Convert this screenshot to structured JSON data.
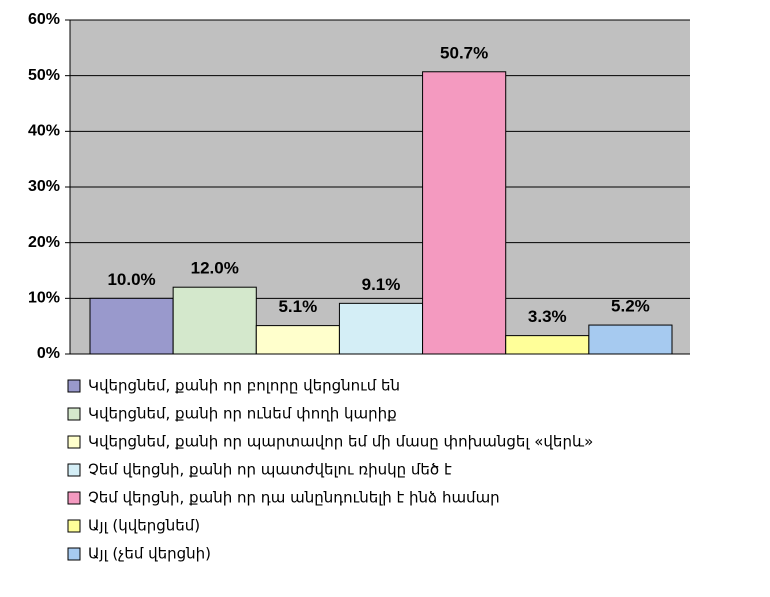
{
  "chart_data": {
    "type": "bar",
    "categories": [
      "Կվերցնեմ, քանի որ բոլորը վերցնում են",
      "Կվերցնեմ, քանի որ ունեմ փողի կարիք",
      "Կվերցնեմ, քանի որ պարտավոր եմ մի մասը փոխանցել «վերև»",
      "Չեմ վերցնի, քանի որ պատժվելու ռիսկը մեծ է",
      "Չեմ վերցնի, քանի որ դա անընդունելի է ինձ համար",
      "Այլ (կվերցնեմ)",
      "Այլ (չեմ վերցնի)"
    ],
    "values": [
      10.0,
      12.0,
      5.1,
      9.1,
      50.7,
      3.3,
      5.2
    ],
    "value_labels": [
      "10.0%",
      "12.0%",
      "5.1%",
      "9.1%",
      "50.7%",
      "3.3%",
      "5.2%"
    ],
    "colors": [
      "#9999cc",
      "#d4e8cc",
      "#ffffcc",
      "#d4eef6",
      "#f49ac0",
      "#ffff99",
      "#a6caf0"
    ],
    "ylim": [
      0,
      60
    ],
    "yticks": [
      {
        "value": 0,
        "label": "0%"
      },
      {
        "value": 10,
        "label": "10%"
      },
      {
        "value": 20,
        "label": "20%"
      },
      {
        "value": 30,
        "label": "30%"
      },
      {
        "value": 40,
        "label": "40%"
      },
      {
        "value": 50,
        "label": "50%"
      },
      {
        "value": 60,
        "label": "60%"
      }
    ],
    "grid": true,
    "background": "#c0c0c0",
    "legend": "bottom"
  }
}
